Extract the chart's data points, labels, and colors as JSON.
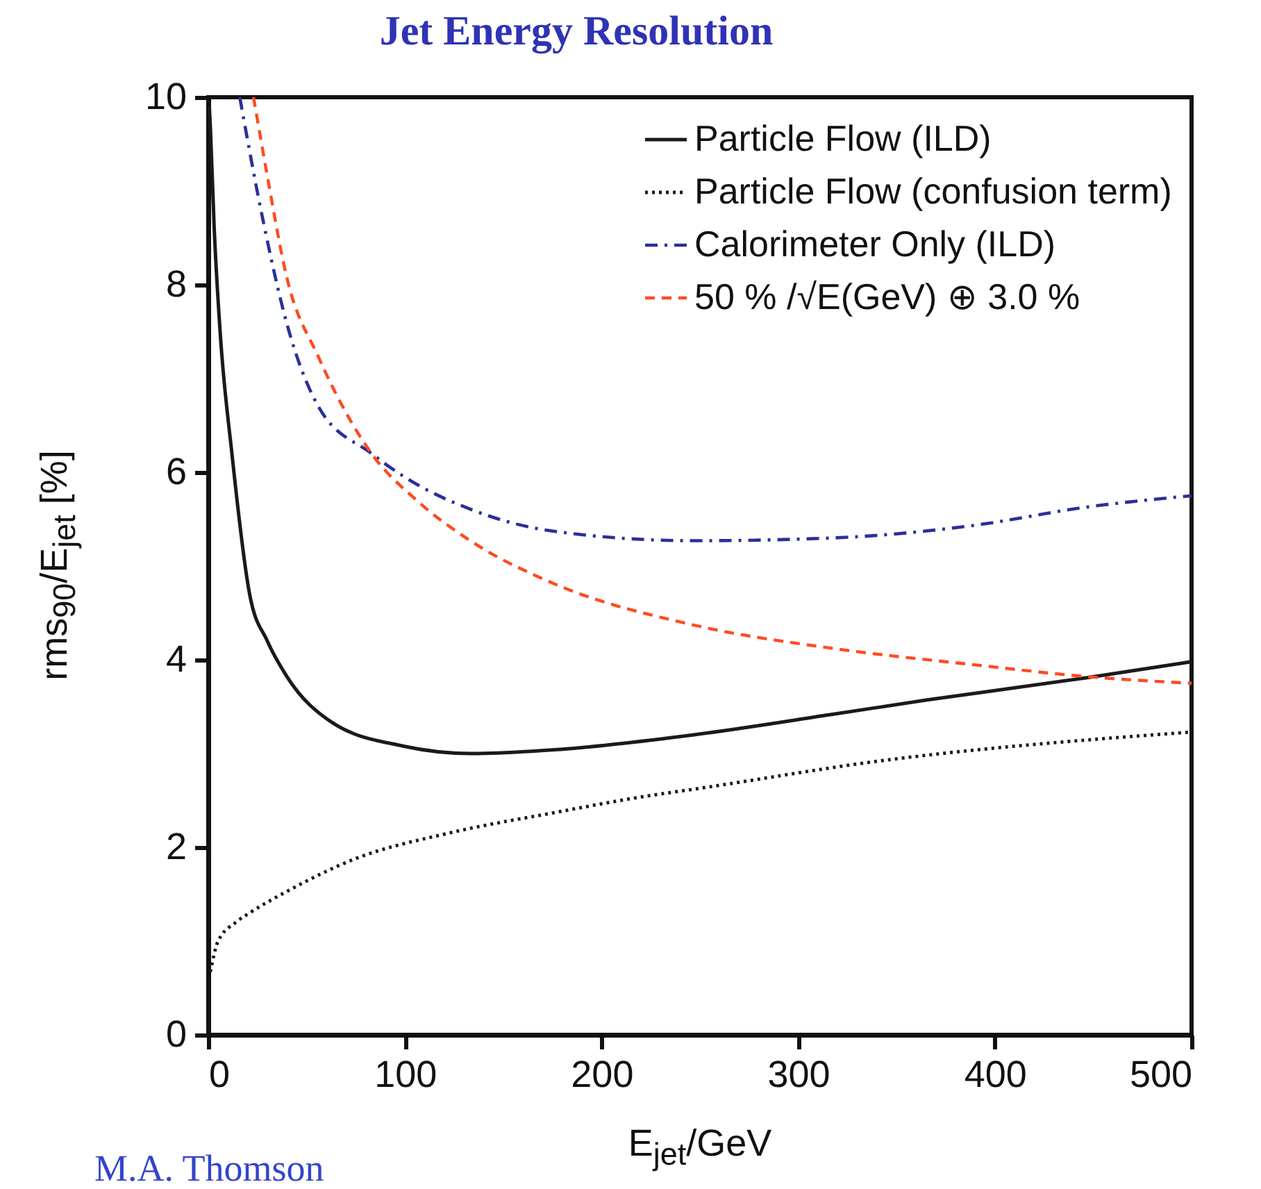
{
  "chart_data": {
    "type": "line",
    "title": "Jet Energy Resolution",
    "xlabel": "E$_{jet}$/GeV",
    "ylabel": "rms$_{90}$/E$_{jet}$ [%]",
    "xlim": [
      0,
      500
    ],
    "xticks": [
      0,
      100,
      200,
      300,
      400,
      500
    ],
    "ylim": [
      0,
      10
    ],
    "yticks": [
      0,
      2,
      4,
      6,
      8,
      10
    ],
    "legend": "top right",
    "grid": false,
    "annotations": [
      "M.A. Thomson"
    ],
    "series": [
      {
        "name": "Particle Flow (ILD)",
        "color": "#1a1a1a",
        "line_style": "solid",
        "x": [
          0.5,
          1,
          3,
          6,
          12,
          21,
          30,
          40,
          63,
          99,
          134,
          176,
          247,
          318,
          365,
          447,
          500
        ],
        "values": [
          9.9,
          9.7,
          8.6,
          7.5,
          6.2,
          4.7,
          4.2,
          3.82,
          3.33,
          3.08,
          3.0,
          3.04,
          3.2,
          3.42,
          3.57,
          3.81,
          3.98
        ]
      },
      {
        "name": "Particle Flow (confusion term)",
        "color": "#1a1a1a",
        "line_style": "dotted",
        "x": [
          1,
          5,
          14,
          21,
          40,
          75,
          122,
          176,
          224,
          247,
          341,
          500
        ],
        "values": [
          0.67,
          1.0,
          1.2,
          1.3,
          1.53,
          1.88,
          2.15,
          2.37,
          2.55,
          2.62,
          2.92,
          3.23
        ]
      },
      {
        "name": "Calorimeter Only (ILD)",
        "color": "#2b2f9a",
        "line_style": "dashdot",
        "x": [
          16,
          28,
          40,
          56,
          83,
          99,
          134,
          176,
          247,
          318,
          388,
          447,
          500
        ],
        "values": [
          10,
          8.67,
          7.58,
          6.7,
          6.2,
          5.96,
          5.6,
          5.37,
          5.27,
          5.3,
          5.43,
          5.63,
          5.75
        ]
      },
      {
        "name": "50 % /√E(GeV) ⊕ 3.0 %",
        "color": "#ff4a1f",
        "line_style": "dashed",
        "x": [
          23,
          30,
          40,
          56,
          83,
          106,
          134,
          176,
          247,
          318,
          388,
          447,
          500
        ],
        "values": [
          10,
          9.16,
          8.07,
          7.23,
          6.2,
          5.7,
          5.26,
          4.81,
          4.37,
          4.12,
          3.95,
          3.82,
          3.75
        ]
      }
    ]
  }
}
